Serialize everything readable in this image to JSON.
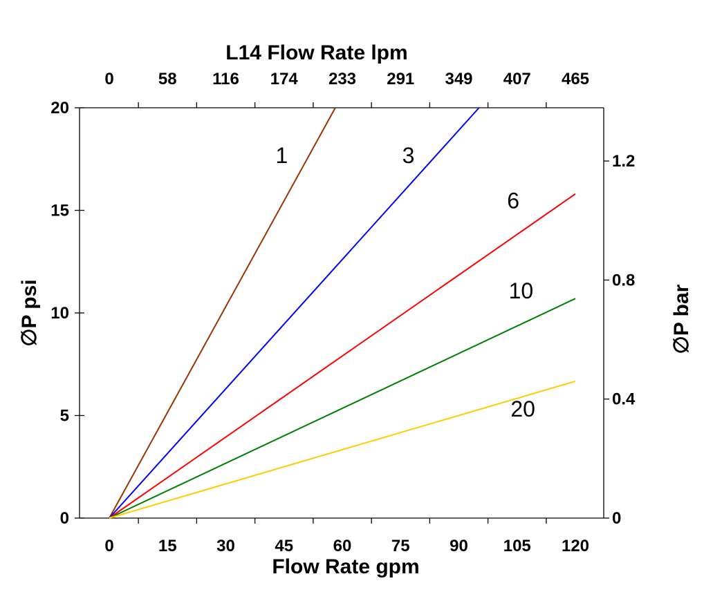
{
  "chart_data": {
    "type": "line",
    "title": "L14  Flow Rate lpm",
    "xlabel": "Flow Rate gpm",
    "ylabel": "∅P psi",
    "y2label": "∅P bar",
    "x_ticks": [
      "0",
      "15",
      "30",
      "45",
      "60",
      "75",
      "90",
      "105",
      "120"
    ],
    "x_tick_values": [
      0,
      15,
      30,
      45,
      60,
      75,
      90,
      105,
      120
    ],
    "x2_ticks": [
      "0",
      "58",
      "116",
      "174",
      "233",
      "291",
      "349",
      "407",
      "465"
    ],
    "y_ticks": [
      "0",
      "5",
      "10",
      "15",
      "20"
    ],
    "y_tick_values": [
      0,
      5,
      10,
      15,
      20
    ],
    "y2_ticks": [
      "0",
      "0.4",
      "0.8",
      "1.2"
    ],
    "y2_tick_values": [
      0,
      0.4,
      0.8,
      1.2
    ],
    "psi_per_bar": 14.5038,
    "xlim": [
      -7.6,
      127.3
    ],
    "ylim": [
      0,
      20
    ],
    "grid": false,
    "series": [
      {
        "name": "1",
        "color": "#993300",
        "x": [
          0,
          58.2
        ],
        "y": [
          0,
          20
        ]
      },
      {
        "name": "3",
        "color": "#0000ff",
        "x": [
          0,
          95.2
        ],
        "y": [
          0,
          20
        ]
      },
      {
        "name": "6",
        "color": "#ff0000",
        "x": [
          0,
          120
        ],
        "y": [
          0,
          15.8
        ]
      },
      {
        "name": "10",
        "color": "#008000",
        "x": [
          0,
          120
        ],
        "y": [
          0,
          10.7
        ]
      },
      {
        "name": "20",
        "color": "#ffcc00",
        "x": [
          0,
          120
        ],
        "y": [
          0,
          6.67
        ]
      }
    ]
  }
}
